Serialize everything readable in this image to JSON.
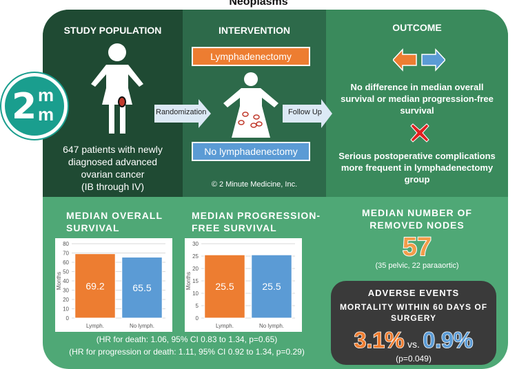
{
  "title": "Neoplasms",
  "columns": {
    "population": "STUDY POPULATION",
    "intervention": "INTERVENTION",
    "outcome": "OUTCOME"
  },
  "logo": {
    "digit": "2",
    "m1": "m",
    "m2": "m"
  },
  "population_text": [
    "647 patients with newly",
    "diagnosed advanced",
    "ovarian cancer",
    "(IB through IV)"
  ],
  "randomization": "Randomization",
  "follow_up": "Follow Up",
  "arm1": "Lymphadenectomy",
  "arm2": "No lymphadenectomy",
  "copyright": "© 2 Minute Medicine, Inc.",
  "outcome1": [
    "No difference in median overall",
    "survival or median progression-free",
    "survival"
  ],
  "outcome2": [
    "Serious postoperative complications",
    "more frequent in lymphadenectomy",
    "group"
  ],
  "os_title": [
    "MEDIAN OVERALL",
    "SURVIVAL"
  ],
  "pfs_title": [
    "MEDIAN PROGRESSION-",
    "FREE SURVIVAL"
  ],
  "nodes_title": [
    "MEDIAN NUMBER OF",
    "REMOVED NODES"
  ],
  "nodes_value": "57",
  "nodes_detail": "(35 pelvic, 22 paraaortic)",
  "hr1": "(HR for death: 1.06, 95% CI 0.83 to 1.34, p=0.65)",
  "hr2": "(HR for progression or death: 1.11, 95% CI 0.92 to 1.34, p=0.29)",
  "adverse": {
    "title": "ADVERSE EVENTS",
    "subtitle1": "MORTALITY WITHIN 60 DAYS OF",
    "subtitle2": "SURGERY",
    "v1": "3.1%",
    "vs": "vs.",
    "v2": "0.9%",
    "p": "(p=0.049)"
  },
  "colors": {
    "orange": "#ed7d31",
    "blue": "#5b9bd5"
  },
  "chart_data": [
    {
      "type": "bar",
      "title": "MEDIAN OVERALL SURVIVAL",
      "categories": [
        "Lymph.",
        "No lymph."
      ],
      "values": [
        69.2,
        65.5
      ],
      "ylabel": "Months",
      "ylim": [
        0,
        80
      ],
      "yticks": [
        0,
        10,
        20,
        30,
        40,
        50,
        60,
        70,
        80
      ],
      "colors": [
        "#ed7d31",
        "#5b9bd5"
      ]
    },
    {
      "type": "bar",
      "title": "MEDIAN PROGRESSION-FREE SURVIVAL",
      "categories": [
        "Lymph.",
        "No lymph."
      ],
      "values": [
        25.5,
        25.5
      ],
      "ylabel": "Months",
      "ylim": [
        0,
        30
      ],
      "yticks": [
        0,
        5,
        10,
        15,
        20,
        25,
        30
      ],
      "colors": [
        "#ed7d31",
        "#5b9bd5"
      ]
    }
  ]
}
